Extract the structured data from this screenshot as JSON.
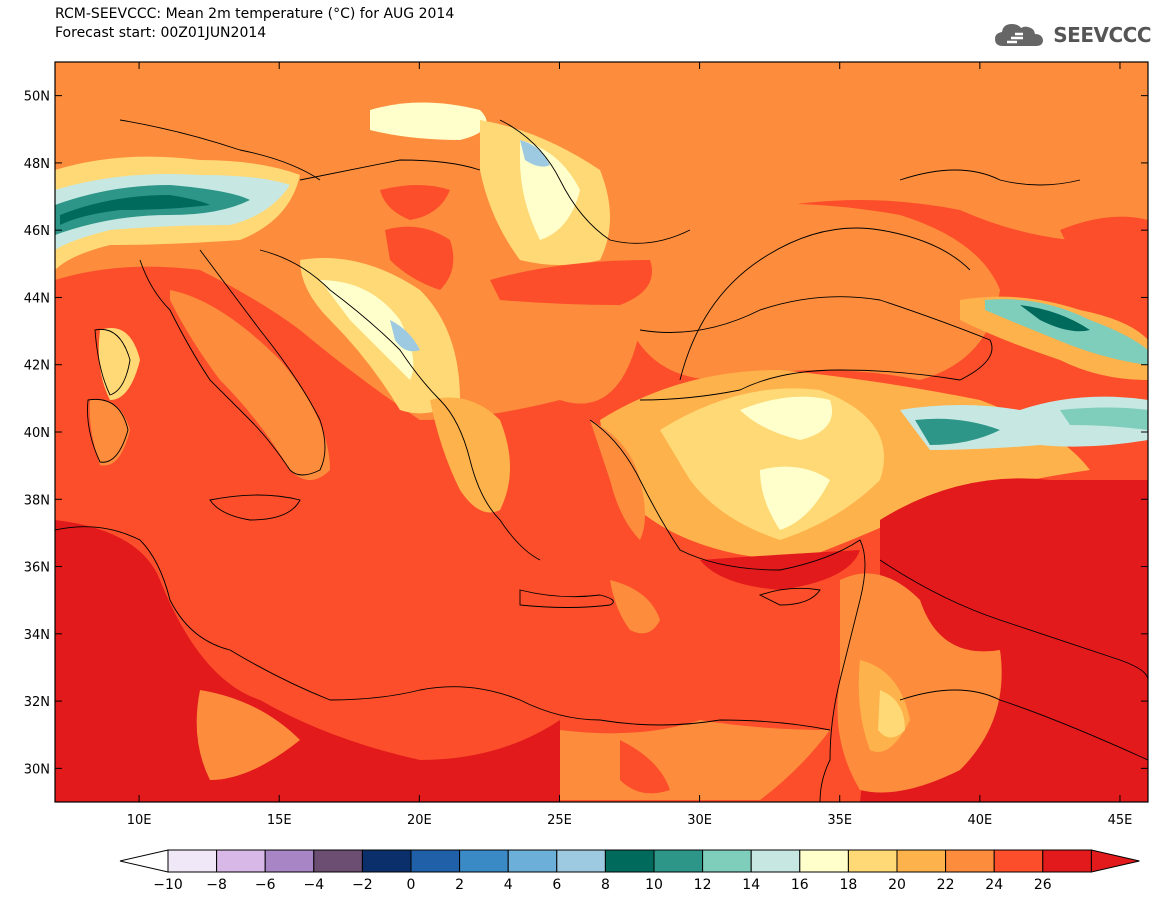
{
  "header": {
    "title": "RCM-SEEVCCC: Mean 2m temperature (°C) for AUG 2014",
    "subtitle": "Forecast start: 00Z01JUN2014"
  },
  "logo": {
    "text": "SEEVCCC",
    "icon": "cloud-icon"
  },
  "map": {
    "lon_range": [
      7,
      46
    ],
    "lat_range": [
      29,
      51
    ],
    "lat_ticks": [
      "50N",
      "48N",
      "46N",
      "44N",
      "42N",
      "40N",
      "38N",
      "36N",
      "34N",
      "32N",
      "30N"
    ],
    "lon_ticks": [
      "10E",
      "15E",
      "20E",
      "25E",
      "30E",
      "35E",
      "40E",
      "45E"
    ]
  },
  "colorbar": {
    "labels": [
      "−10",
      "−8",
      "−6",
      "−4",
      "−2",
      "0",
      "2",
      "4",
      "6",
      "8",
      "10",
      "12",
      "14",
      "16",
      "18",
      "20",
      "22",
      "24",
      "26"
    ],
    "colors": [
      "#f0e8f6",
      "#d8b8e6",
      "#a886c6",
      "#6b4e72",
      "#0b2f6b",
      "#1f60a8",
      "#3a8ac6",
      "#6cb0da",
      "#9ecae1",
      "#006b5c",
      "#2e9688",
      "#7fcdbb",
      "#c7e8e2",
      "#ffffcc",
      "#fed976",
      "#feb24c",
      "#fd8d3c",
      "#fc4e2a",
      "#e31a1c"
    ],
    "under_color": "#ffffff",
    "over_color": "#e31a1c"
  }
}
